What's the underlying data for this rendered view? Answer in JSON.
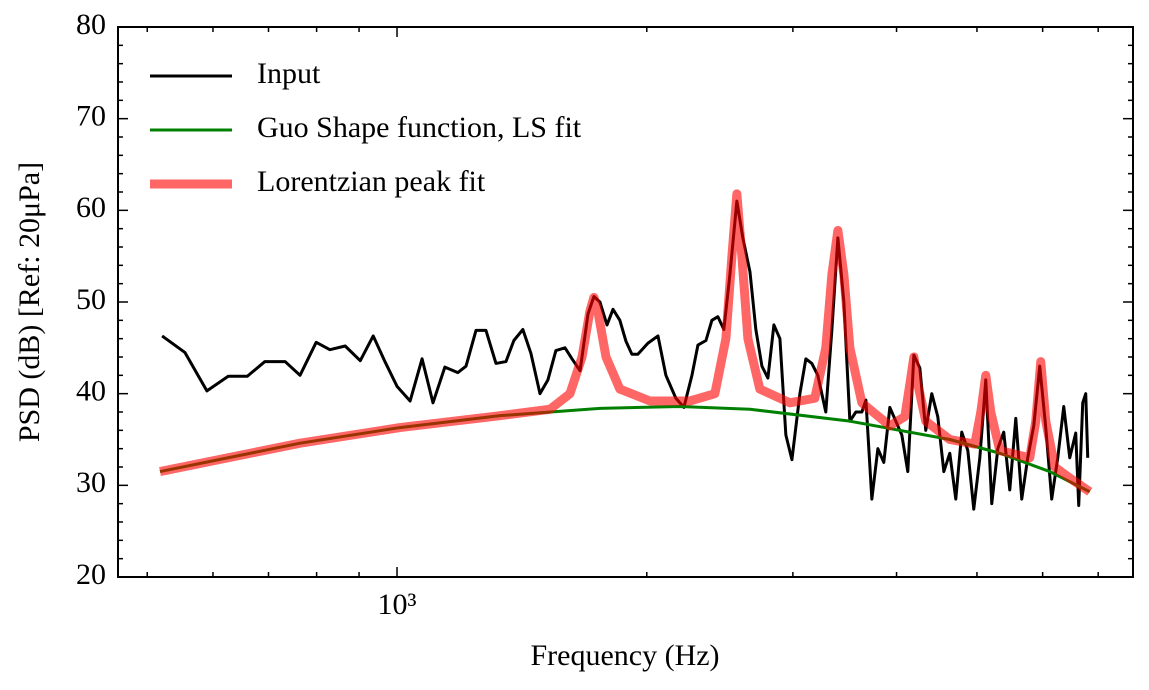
{
  "chart_data": {
    "type": "line",
    "xlabel": "Frequency (Hz)",
    "ylabel": "PSD (dB) [Ref: 20μPa]",
    "xscale": "log",
    "xlim": [
      461,
      7710
    ],
    "ylim": [
      20,
      80
    ],
    "xticks": [
      {
        "value": 1000,
        "label": "10³"
      }
    ],
    "xticks_minor": [
      500,
      600,
      700,
      800,
      900,
      2000,
      3000,
      4000,
      5000,
      6000,
      7000
    ],
    "yticks": [
      20,
      30,
      40,
      50,
      60,
      70,
      80
    ],
    "yticks_minor": [
      22,
      24,
      26,
      28,
      32,
      34,
      36,
      38,
      42,
      44,
      46,
      48,
      52,
      54,
      56,
      58,
      62,
      64,
      66,
      68,
      72,
      74,
      76,
      78
    ],
    "legend": "upper left",
    "series": [
      {
        "name": "Input",
        "color": "#000000",
        "linewidth": 3,
        "opacity": 1,
        "x": [
          521,
          555,
          590,
          626,
          660,
          693,
          733,
          764,
          799,
          830,
          866,
          903,
          936,
          967,
          1000,
          1037,
          1072,
          1105,
          1142,
          1184,
          1211,
          1245,
          1280,
          1316,
          1353,
          1383,
          1418,
          1450,
          1487,
          1520,
          1554,
          1594,
          1625,
          1662,
          1699,
          1727,
          1756,
          1791,
          1821,
          1856,
          1888,
          1919,
          1951,
          2006,
          2063,
          2109,
          2168,
          2217,
          2267,
          2305,
          2357,
          2396,
          2436,
          2477,
          2519,
          2568,
          2611,
          2663,
          2707,
          2753,
          2799,
          2846,
          2894,
          2942,
          2992,
          3059,
          3110,
          3162,
          3215,
          3287,
          3343,
          3399,
          3456,
          3514,
          3573,
          3633,
          3674,
          3735,
          3798,
          3861,
          3926,
          3992,
          4059,
          4127,
          4197,
          4267,
          4338,
          4411,
          4485,
          4561,
          4637,
          4715,
          4794,
          4875,
          4956,
          5040,
          5124,
          5210,
          5298,
          5386,
          5477,
          5569,
          5662,
          5757,
          5854,
          5952,
          6052,
          6153,
          6257,
          6362,
          6469,
          6577,
          6632,
          6706,
          6762,
          6800
        ],
        "values": [
          46.3,
          44.5,
          40.3,
          41.9,
          41.9,
          43.5,
          43.5,
          42,
          45.6,
          44.8,
          45.2,
          43.6,
          46.3,
          43.5,
          40.8,
          39.2,
          43.8,
          39,
          42.9,
          42.3,
          43,
          46.9,
          46.9,
          43.3,
          43.5,
          45.8,
          47,
          44.4,
          40,
          41.5,
          44.7,
          45,
          43.8,
          42.5,
          48.7,
          50.6,
          50,
          47.5,
          49.2,
          48,
          45.7,
          44.3,
          44.3,
          45.5,
          46.3,
          42,
          39.5,
          38.5,
          42,
          45.3,
          45.8,
          48,
          48.4,
          47,
          53,
          61,
          57,
          53.3,
          47,
          43,
          41.7,
          47.5,
          46,
          35.5,
          32.8,
          40,
          43.8,
          43.3,
          42,
          38,
          47,
          57,
          50,
          37,
          38,
          38,
          39.3,
          28.5,
          34,
          32.5,
          38.5,
          37,
          35.5,
          31.5,
          44.2,
          42.8,
          36,
          40,
          37.5,
          31.5,
          33.5,
          28.5,
          35.8,
          33.8,
          27.4,
          33,
          41.5,
          28,
          34,
          35.8,
          29.5,
          37.3,
          28.5,
          33,
          36.5,
          43,
          36.3,
          28.5,
          33,
          38.6,
          33,
          35.7,
          27.8,
          39,
          40,
          33
        ]
      },
      {
        "name": "Guo Shape function, LS fit",
        "color": "#008000",
        "linewidth": 3,
        "opacity": 1,
        "x": [
          518,
          764,
          1008,
          1331,
          1756,
          2193,
          2663,
          3514,
          4637,
          5327,
          6119,
          6838
        ],
        "values": [
          31.5,
          34.6,
          36.3,
          37.6,
          38.4,
          38.6,
          38.3,
          37.0,
          35.0,
          33.5,
          31.5,
          29.3
        ]
      },
      {
        "name": "Lorentzian peak fit",
        "color": "#ff0000",
        "linewidth": 9,
        "opacity": 0.6,
        "x": [
          518,
          764,
          1008,
          1331,
          1529,
          1616,
          1671,
          1708,
          1727,
          1746,
          1786,
          1856,
          2018,
          2254,
          2416,
          2491,
          2533,
          2568,
          2604,
          2648,
          2737,
          2975,
          3188,
          3287,
          3343,
          3399,
          3456,
          3514,
          3633,
          3926,
          4093,
          4150,
          4197,
          4244,
          4338,
          4637,
          4970,
          5054,
          5124,
          5196,
          5327,
          5789,
          5887,
          5969,
          6052,
          6205,
          6469,
          6838
        ],
        "values": [
          31.5,
          34.6,
          36.3,
          37.6,
          38.3,
          40,
          44,
          49,
          50.5,
          49,
          44,
          40.5,
          39.2,
          39.2,
          40,
          46,
          55,
          61.8,
          55,
          46,
          40.5,
          39,
          39.5,
          45,
          53,
          57.8,
          53,
          45,
          39,
          36.5,
          37.5,
          41,
          44,
          41,
          37,
          35,
          34.5,
          38,
          42,
          38,
          33.8,
          33,
          37,
          43.5,
          37,
          32,
          30.8,
          29.3
        ]
      }
    ]
  }
}
